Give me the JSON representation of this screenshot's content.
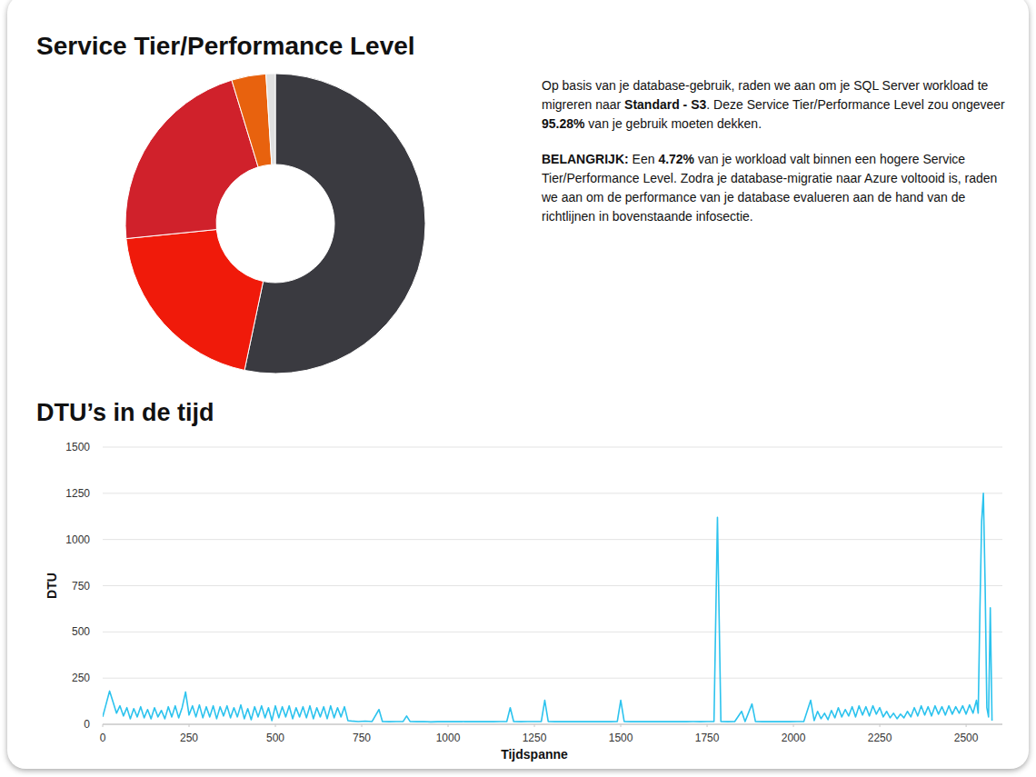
{
  "chart_data": [
    {
      "type": "pie",
      "title": "Service Tier/Performance Level",
      "categories": [
        null,
        null,
        null,
        null,
        null
      ],
      "values": [
        53.3,
        20.1,
        21.9,
        3.7,
        1.0
      ],
      "colors": [
        "#3a3a40",
        "#f01a0a",
        "#d0212b",
        "#e8620e",
        "#e0e0e0"
      ]
    },
    {
      "type": "line",
      "title": "DTU’s in de tijd",
      "x_label": "Tijdspanne",
      "y_label": "DTU",
      "color": "#2cc3ee",
      "grid": true,
      "xlim": [
        0,
        2605
      ],
      "xticks": [
        0,
        250,
        500,
        750,
        1000,
        1250,
        1500,
        1750,
        2000,
        2250,
        2500
      ],
      "ylim": [
        0,
        1500
      ],
      "yticks": [
        0,
        250,
        500,
        750,
        1000,
        1250,
        1500
      ],
      "x": [
        0,
        10,
        20,
        30,
        40,
        50,
        60,
        70,
        80,
        90,
        100,
        110,
        120,
        130,
        140,
        150,
        160,
        170,
        180,
        190,
        200,
        210,
        220,
        230,
        240,
        250,
        260,
        270,
        280,
        290,
        300,
        310,
        320,
        330,
        340,
        350,
        360,
        370,
        380,
        390,
        400,
        410,
        420,
        430,
        440,
        450,
        460,
        470,
        480,
        490,
        500,
        510,
        520,
        530,
        540,
        550,
        560,
        570,
        580,
        590,
        600,
        610,
        620,
        630,
        640,
        650,
        660,
        670,
        680,
        690,
        700,
        710,
        720,
        740,
        760,
        780,
        800,
        810,
        830,
        850,
        870,
        880,
        890,
        910,
        930,
        950,
        970,
        990,
        1010,
        1030,
        1050,
        1070,
        1090,
        1110,
        1130,
        1150,
        1170,
        1180,
        1190,
        1210,
        1230,
        1250,
        1270,
        1280,
        1290,
        1310,
        1330,
        1350,
        1370,
        1390,
        1410,
        1430,
        1450,
        1470,
        1490,
        1500,
        1510,
        1530,
        1550,
        1570,
        1590,
        1610,
        1630,
        1650,
        1670,
        1690,
        1710,
        1730,
        1750,
        1770,
        1780,
        1790,
        1810,
        1830,
        1850,
        1860,
        1880,
        1890,
        1910,
        1930,
        1950,
        1970,
        1990,
        2010,
        2030,
        2050,
        2060,
        2070,
        2080,
        2090,
        2100,
        2110,
        2120,
        2130,
        2140,
        2150,
        2160,
        2170,
        2180,
        2190,
        2200,
        2210,
        2220,
        2230,
        2240,
        2250,
        2260,
        2270,
        2280,
        2290,
        2300,
        2310,
        2320,
        2330,
        2340,
        2350,
        2360,
        2370,
        2380,
        2390,
        2400,
        2410,
        2420,
        2430,
        2440,
        2450,
        2460,
        2470,
        2480,
        2490,
        2500,
        2510,
        2520,
        2530,
        2535,
        2540,
        2545,
        2550,
        2555,
        2560,
        2565,
        2570,
        2575
      ],
      "values": [
        40,
        110,
        180,
        120,
        60,
        100,
        45,
        90,
        30,
        85,
        40,
        95,
        35,
        80,
        30,
        90,
        40,
        75,
        30,
        95,
        40,
        100,
        35,
        90,
        175,
        50,
        100,
        40,
        105,
        35,
        95,
        40,
        100,
        30,
        95,
        45,
        100,
        35,
        90,
        40,
        105,
        30,
        85,
        25,
        95,
        40,
        100,
        35,
        90,
        20,
        100,
        35,
        95,
        40,
        100,
        30,
        90,
        40,
        95,
        35,
        100,
        30,
        90,
        40,
        95,
        30,
        100,
        35,
        90,
        40,
        95,
        20,
        18,
        15,
        17,
        15,
        80,
        15,
        14,
        15,
        15,
        45,
        15,
        14,
        15,
        13,
        14,
        15,
        14,
        15,
        14,
        15,
        14,
        15,
        14,
        15,
        15,
        90,
        15,
        14,
        15,
        15,
        15,
        130,
        15,
        14,
        15,
        14,
        15,
        14,
        15,
        14,
        15,
        14,
        15,
        130,
        15,
        14,
        15,
        14,
        15,
        14,
        15,
        14,
        15,
        14,
        15,
        14,
        15,
        15,
        1120,
        15,
        14,
        15,
        70,
        15,
        110,
        15,
        14,
        15,
        14,
        15,
        14,
        15,
        15,
        130,
        20,
        70,
        30,
        60,
        25,
        75,
        35,
        90,
        40,
        80,
        45,
        95,
        40,
        100,
        50,
        95,
        45,
        100,
        55,
        90,
        40,
        70,
        35,
        60,
        30,
        55,
        35,
        70,
        40,
        90,
        45,
        100,
        50,
        95,
        45,
        100,
        55,
        95,
        50,
        100,
        55,
        95,
        60,
        100,
        55,
        105,
        60,
        130,
        60,
        620,
        1100,
        1250,
        760,
        90,
        40,
        630,
        20
      ]
    }
  ],
  "recommendation": {
    "paragraphs": [
      [
        {
          "text": "Op basis van je database-gebruik, raden we aan om je SQL Server workload te migreren naar ",
          "strong": false
        },
        {
          "text": "Standard - S3",
          "strong": true
        },
        {
          "text": ". Deze Service Tier/Performance Level zou ongeveer ",
          "strong": false
        },
        {
          "text": "95.28%",
          "strong": true
        },
        {
          "text": " van je gebruik moeten dekken.",
          "strong": false
        }
      ],
      [
        {
          "text": "BELANGRIJK:",
          "strong": true
        },
        {
          "text": " Een ",
          "strong": false
        },
        {
          "text": "4.72%",
          "strong": true
        },
        {
          "text": " van je workload valt binnen een hogere Service Tier/Performance Level. Zodra je database-migratie naar Azure voltooid is, raden we aan om de performance van je database evalueren aan de hand van de richtlijnen in bovenstaande infosectie.",
          "strong": false
        }
      ]
    ]
  }
}
